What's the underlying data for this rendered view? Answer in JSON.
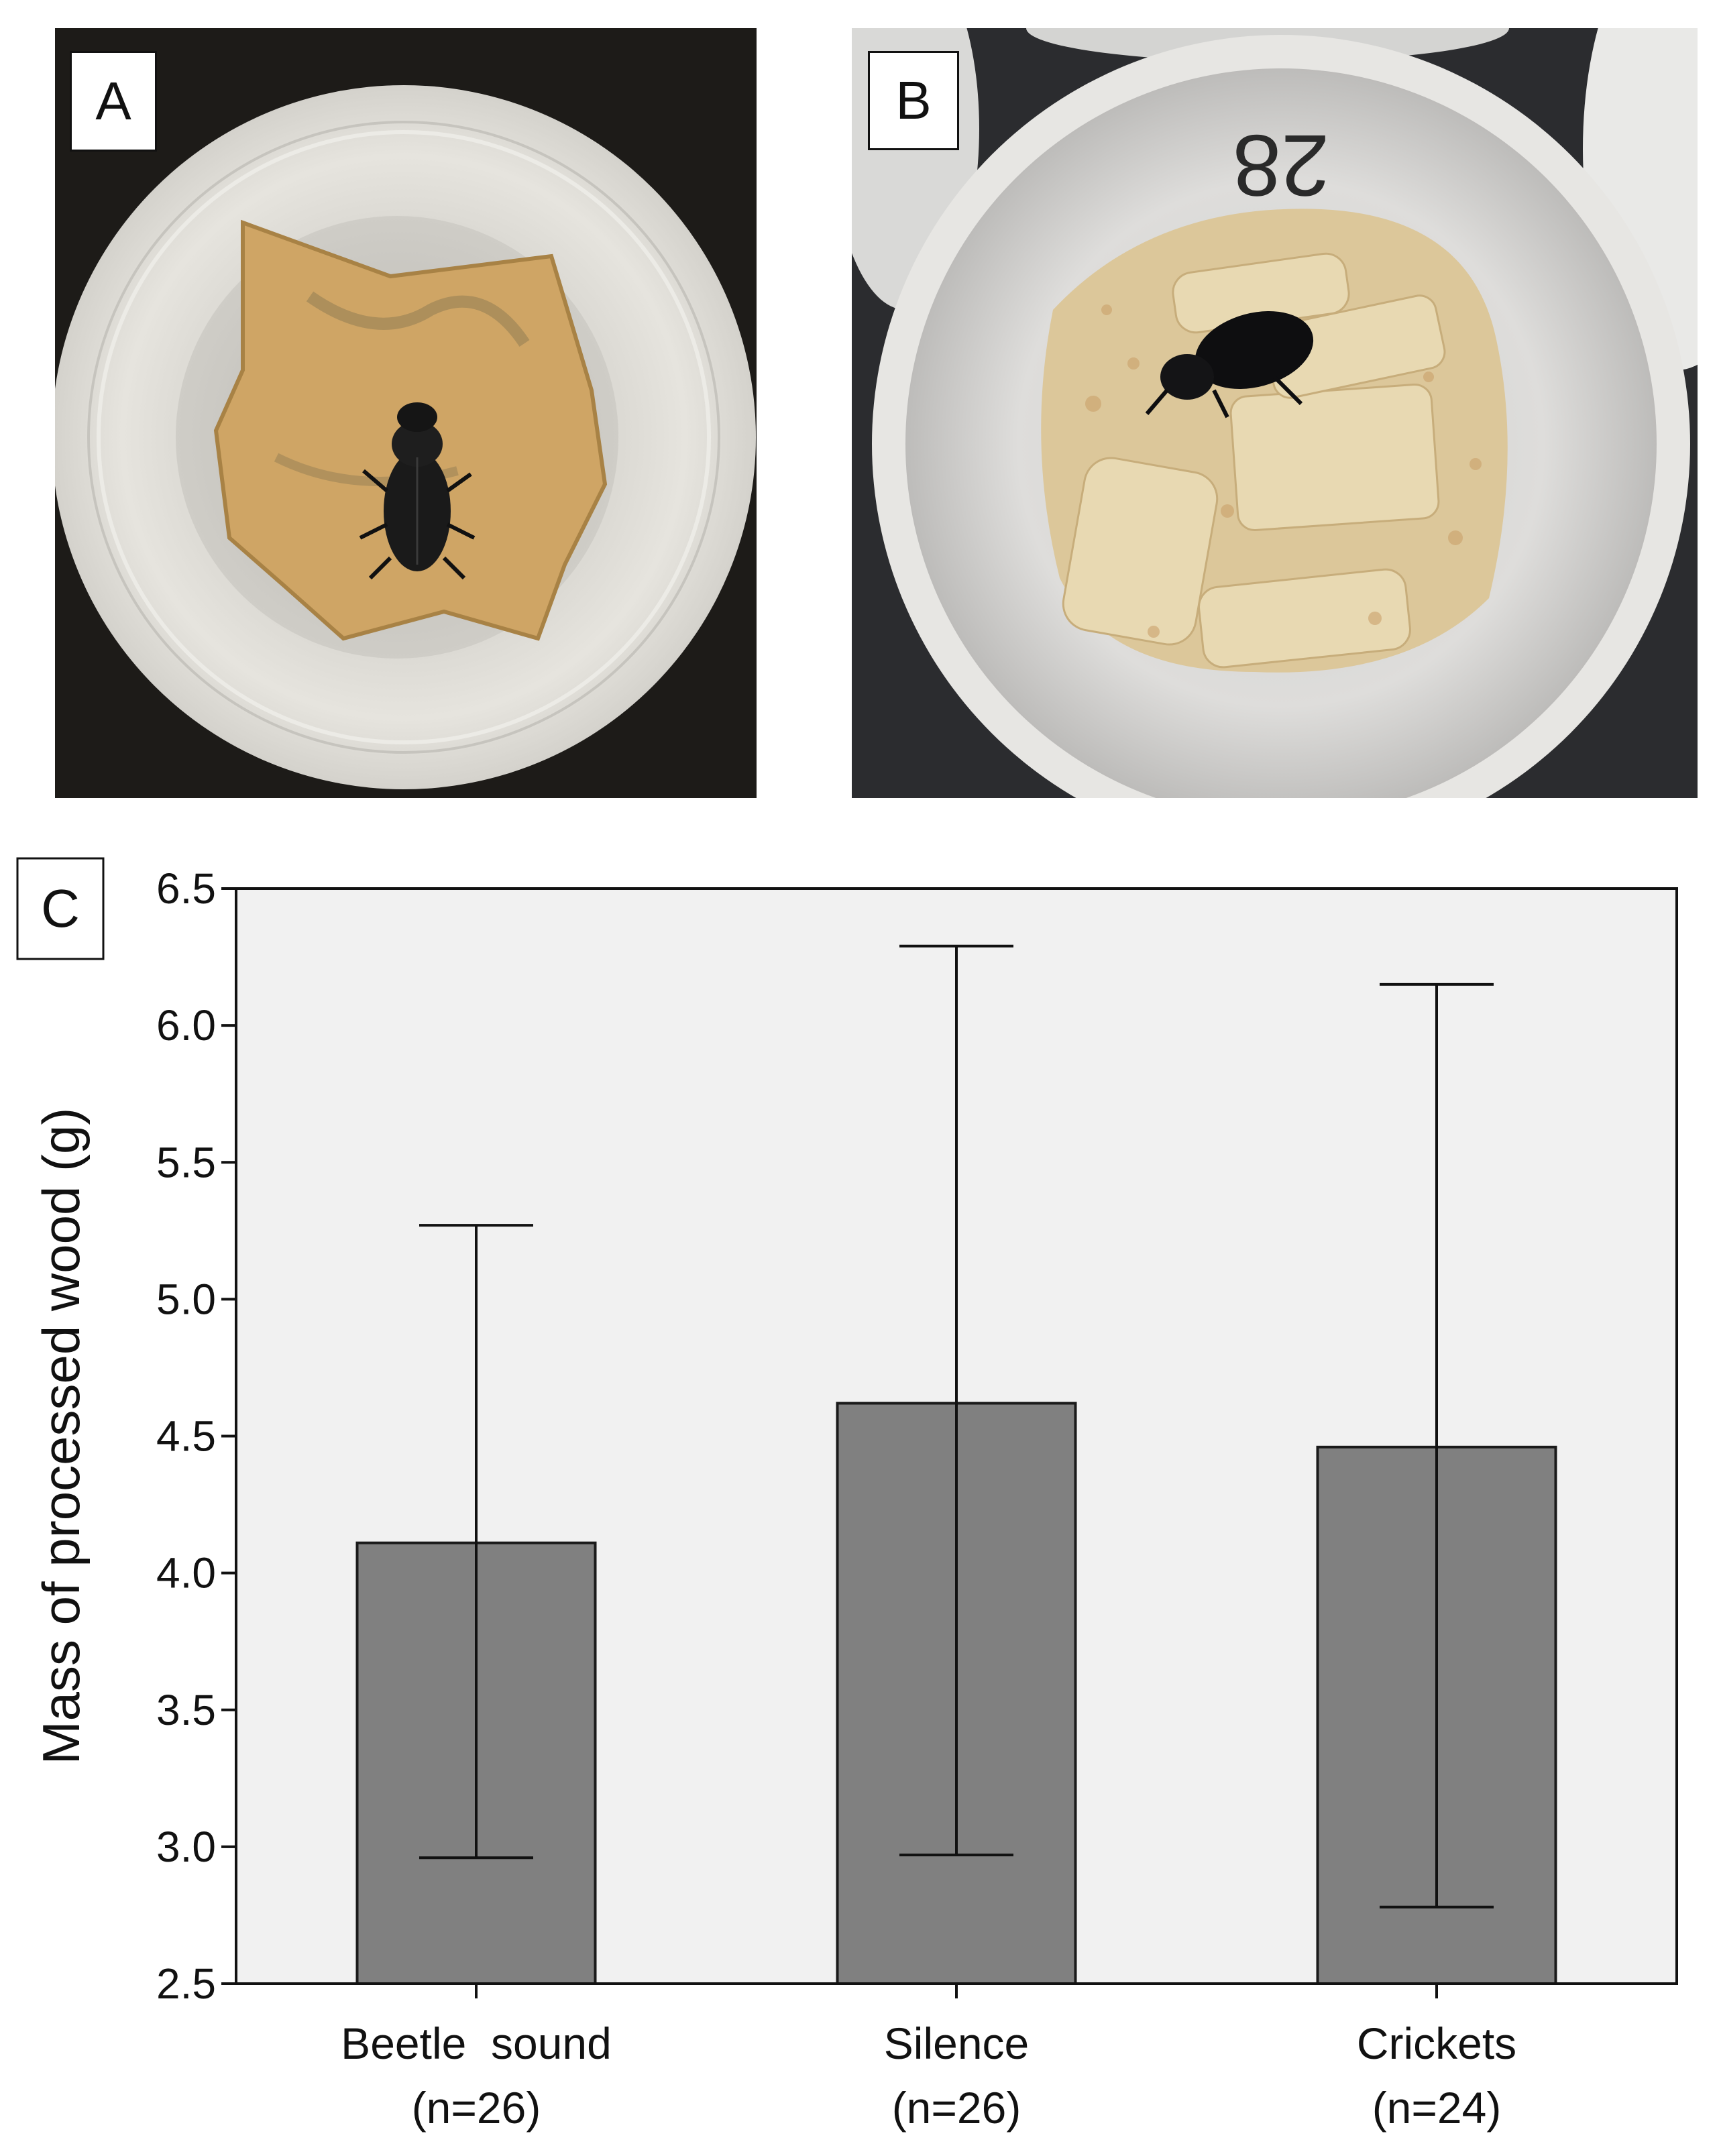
{
  "panels": {
    "a": {
      "label": "A"
    },
    "b": {
      "label": "B",
      "cup_marking": "28"
    },
    "c": {
      "label": "C"
    }
  },
  "chart_data": {
    "type": "bar",
    "title": "",
    "xlabel": "",
    "ylabel": "Mass of processed wood (g)",
    "ylim": [
      2.5,
      6.5
    ],
    "yticks": [
      "2.5",
      "3.0",
      "3.5",
      "4.0",
      "4.5",
      "5.0",
      "5.5",
      "6.0",
      "6.5"
    ],
    "categories": [
      {
        "name": "Beetle  sound",
        "n": "(n=26)"
      },
      {
        "name": "Silence",
        "n": "(n=26)"
      },
      {
        "name": "Crickets",
        "n": "(n=24)"
      }
    ],
    "values": [
      4.11,
      4.62,
      4.46
    ],
    "error_low": [
      2.96,
      2.97,
      2.78
    ],
    "error_high": [
      5.27,
      6.29,
      6.15
    ],
    "grid": false,
    "colors": {
      "bar": "#808080",
      "plot_bg": "#f1f1f1",
      "axis": "#111111"
    }
  }
}
